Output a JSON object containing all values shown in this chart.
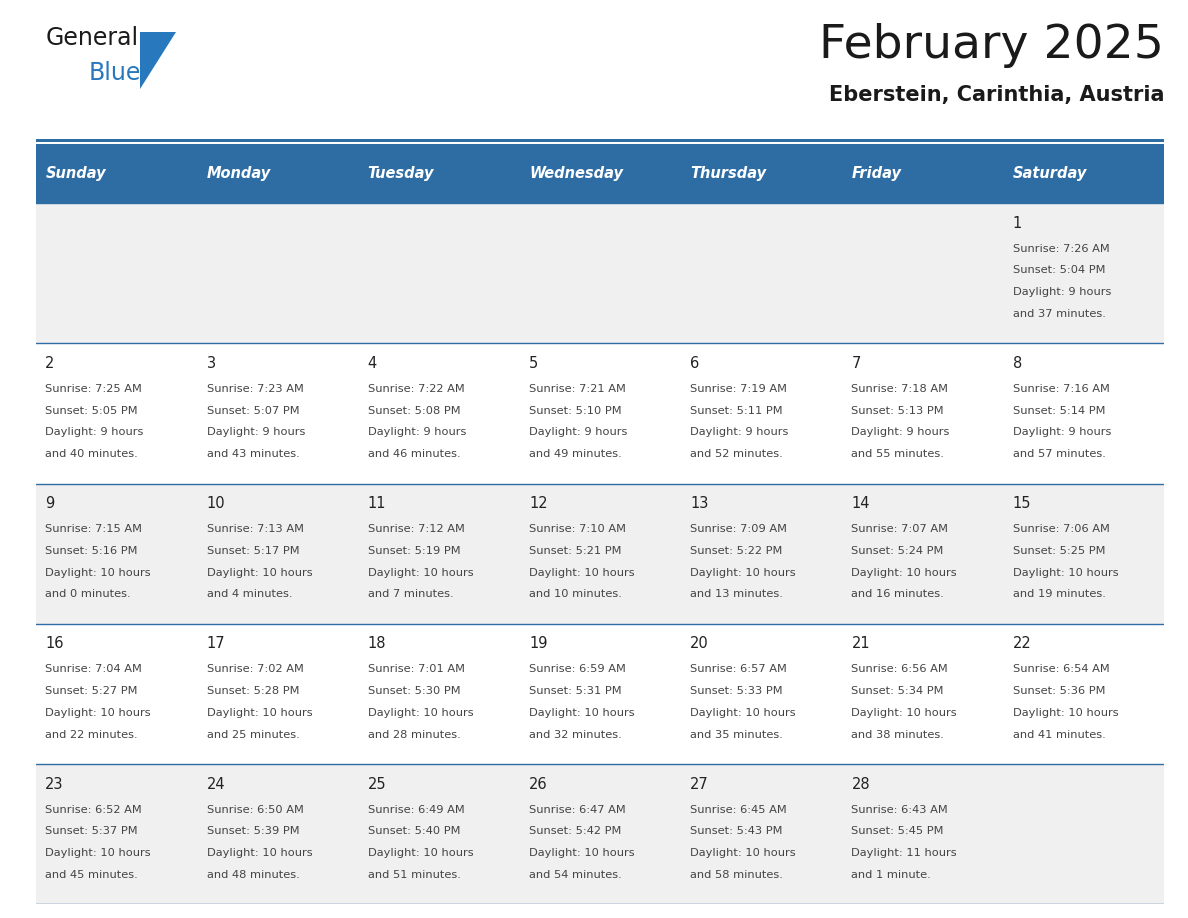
{
  "title": "February 2025",
  "subtitle": "Eberstein, Carinthia, Austria",
  "days_of_week": [
    "Sunday",
    "Monday",
    "Tuesday",
    "Wednesday",
    "Thursday",
    "Friday",
    "Saturday"
  ],
  "header_bg": "#2E6DA4",
  "header_text": "#FFFFFF",
  "row1_bg": "#F0F0F0",
  "row_bg": "#FFFFFF",
  "divider_color": "#2E6DA4",
  "text_color": "#444444",
  "day_num_color": "#222222",
  "title_color": "#1a1a1a",
  "subtitle_color": "#1a1a1a",
  "logo_color_general": "#1a1a1a",
  "logo_color_blue": "#2878BE",
  "logo_triangle_color": "#2878BE",
  "calendar_data": [
    [
      null,
      null,
      null,
      null,
      null,
      null,
      {
        "day": 1,
        "sunrise": "7:26 AM",
        "sunset": "5:04 PM",
        "daylight_line1": "9 hours",
        "daylight_line2": "and 37 minutes."
      }
    ],
    [
      {
        "day": 2,
        "sunrise": "7:25 AM",
        "sunset": "5:05 PM",
        "daylight_line1": "9 hours",
        "daylight_line2": "and 40 minutes."
      },
      {
        "day": 3,
        "sunrise": "7:23 AM",
        "sunset": "5:07 PM",
        "daylight_line1": "9 hours",
        "daylight_line2": "and 43 minutes."
      },
      {
        "day": 4,
        "sunrise": "7:22 AM",
        "sunset": "5:08 PM",
        "daylight_line1": "9 hours",
        "daylight_line2": "and 46 minutes."
      },
      {
        "day": 5,
        "sunrise": "7:21 AM",
        "sunset": "5:10 PM",
        "daylight_line1": "9 hours",
        "daylight_line2": "and 49 minutes."
      },
      {
        "day": 6,
        "sunrise": "7:19 AM",
        "sunset": "5:11 PM",
        "daylight_line1": "9 hours",
        "daylight_line2": "and 52 minutes."
      },
      {
        "day": 7,
        "sunrise": "7:18 AM",
        "sunset": "5:13 PM",
        "daylight_line1": "9 hours",
        "daylight_line2": "and 55 minutes."
      },
      {
        "day": 8,
        "sunrise": "7:16 AM",
        "sunset": "5:14 PM",
        "daylight_line1": "9 hours",
        "daylight_line2": "and 57 minutes."
      }
    ],
    [
      {
        "day": 9,
        "sunrise": "7:15 AM",
        "sunset": "5:16 PM",
        "daylight_line1": "10 hours",
        "daylight_line2": "and 0 minutes."
      },
      {
        "day": 10,
        "sunrise": "7:13 AM",
        "sunset": "5:17 PM",
        "daylight_line1": "10 hours",
        "daylight_line2": "and 4 minutes."
      },
      {
        "day": 11,
        "sunrise": "7:12 AM",
        "sunset": "5:19 PM",
        "daylight_line1": "10 hours",
        "daylight_line2": "and 7 minutes."
      },
      {
        "day": 12,
        "sunrise": "7:10 AM",
        "sunset": "5:21 PM",
        "daylight_line1": "10 hours",
        "daylight_line2": "and 10 minutes."
      },
      {
        "day": 13,
        "sunrise": "7:09 AM",
        "sunset": "5:22 PM",
        "daylight_line1": "10 hours",
        "daylight_line2": "and 13 minutes."
      },
      {
        "day": 14,
        "sunrise": "7:07 AM",
        "sunset": "5:24 PM",
        "daylight_line1": "10 hours",
        "daylight_line2": "and 16 minutes."
      },
      {
        "day": 15,
        "sunrise": "7:06 AM",
        "sunset": "5:25 PM",
        "daylight_line1": "10 hours",
        "daylight_line2": "and 19 minutes."
      }
    ],
    [
      {
        "day": 16,
        "sunrise": "7:04 AM",
        "sunset": "5:27 PM",
        "daylight_line1": "10 hours",
        "daylight_line2": "and 22 minutes."
      },
      {
        "day": 17,
        "sunrise": "7:02 AM",
        "sunset": "5:28 PM",
        "daylight_line1": "10 hours",
        "daylight_line2": "and 25 minutes."
      },
      {
        "day": 18,
        "sunrise": "7:01 AM",
        "sunset": "5:30 PM",
        "daylight_line1": "10 hours",
        "daylight_line2": "and 28 minutes."
      },
      {
        "day": 19,
        "sunrise": "6:59 AM",
        "sunset": "5:31 PM",
        "daylight_line1": "10 hours",
        "daylight_line2": "and 32 minutes."
      },
      {
        "day": 20,
        "sunrise": "6:57 AM",
        "sunset": "5:33 PM",
        "daylight_line1": "10 hours",
        "daylight_line2": "and 35 minutes."
      },
      {
        "day": 21,
        "sunrise": "6:56 AM",
        "sunset": "5:34 PM",
        "daylight_line1": "10 hours",
        "daylight_line2": "and 38 minutes."
      },
      {
        "day": 22,
        "sunrise": "6:54 AM",
        "sunset": "5:36 PM",
        "daylight_line1": "10 hours",
        "daylight_line2": "and 41 minutes."
      }
    ],
    [
      {
        "day": 23,
        "sunrise": "6:52 AM",
        "sunset": "5:37 PM",
        "daylight_line1": "10 hours",
        "daylight_line2": "and 45 minutes."
      },
      {
        "day": 24,
        "sunrise": "6:50 AM",
        "sunset": "5:39 PM",
        "daylight_line1": "10 hours",
        "daylight_line2": "and 48 minutes."
      },
      {
        "day": 25,
        "sunrise": "6:49 AM",
        "sunset": "5:40 PM",
        "daylight_line1": "10 hours",
        "daylight_line2": "and 51 minutes."
      },
      {
        "day": 26,
        "sunrise": "6:47 AM",
        "sunset": "5:42 PM",
        "daylight_line1": "10 hours",
        "daylight_line2": "and 54 minutes."
      },
      {
        "day": 27,
        "sunrise": "6:45 AM",
        "sunset": "5:43 PM",
        "daylight_line1": "10 hours",
        "daylight_line2": "and 58 minutes."
      },
      {
        "day": 28,
        "sunrise": "6:43 AM",
        "sunset": "5:45 PM",
        "daylight_line1": "11 hours",
        "daylight_line2": "and 1 minute."
      },
      null
    ]
  ]
}
